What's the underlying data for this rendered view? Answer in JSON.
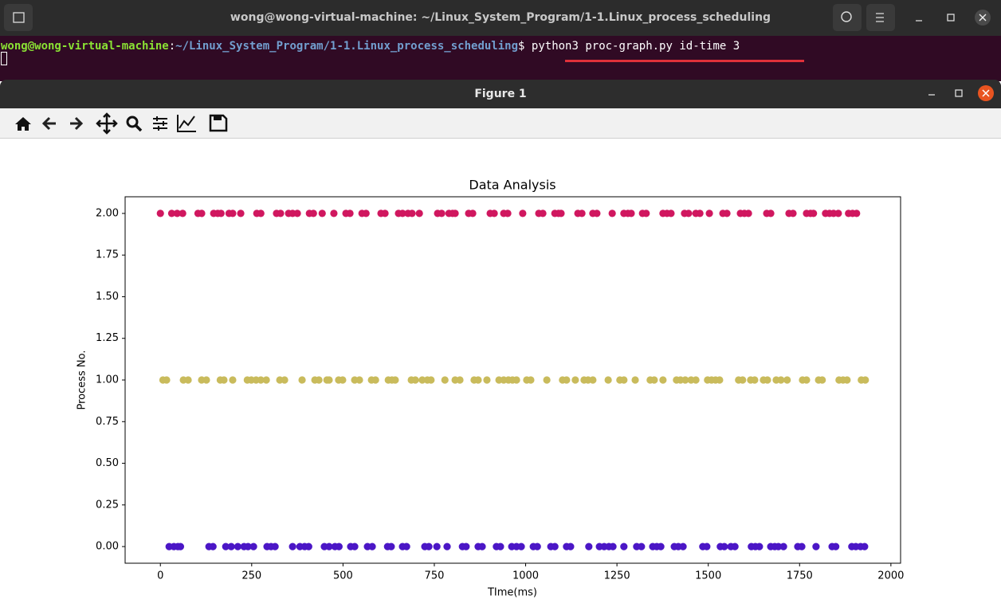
{
  "terminal": {
    "title": "wong@wong-virtual-machine: ~/Linux_System_Program/1-1.Linux_process_scheduling",
    "prompt_user": "wong@wong-virtual-machine",
    "prompt_sep": ":",
    "prompt_path": "~/Linux_System_Program/1-1.Linux_process_scheduling",
    "prompt_symbol": "$",
    "command": "python3 proc-graph.py id-time 3"
  },
  "figure_window": {
    "title": "Figure 1"
  },
  "chart_data": {
    "type": "scatter",
    "title": "Data Analysis",
    "x_label": "TIme(ms)",
    "y_label": "Process No.",
    "xlim": [
      -96.5,
      2026.5
    ],
    "ylim": [
      -0.1,
      2.1
    ],
    "xticks": [
      0,
      250,
      500,
      750,
      1000,
      1250,
      1500,
      1750,
      2000
    ],
    "yticks": [
      {
        "value": 0,
        "label": "0.00"
      },
      {
        "value": 0.25,
        "label": "0.25"
      },
      {
        "value": 0.5,
        "label": "0.50"
      },
      {
        "value": 0.75,
        "label": "0.75"
      },
      {
        "value": 1,
        "label": "1.00"
      },
      {
        "value": 1.25,
        "label": "1.25"
      },
      {
        "value": 1.5,
        "label": "1.50"
      },
      {
        "value": 1.75,
        "label": "1.75"
      },
      {
        "value": 2,
        "label": "2.00"
      }
    ],
    "grid": false,
    "series": [
      {
        "color": "#d0175f",
        "y": 2,
        "x": [
          0,
          31,
          46,
          61,
          103,
          113,
          146,
          157,
          166,
          188,
          198,
          220,
          264,
          275,
          318,
          329,
          351,
          362,
          375,
          408,
          419,
          443,
          475,
          508,
          519,
          552,
          563,
          604,
          615,
          652,
          663,
          678,
          689,
          709,
          759,
          770,
          790,
          800,
          807,
          844,
          855,
          903,
          914,
          940,
          951,
          992,
          1036,
          1047,
          1080,
          1090,
          1097,
          1143,
          1154,
          1184,
          1195,
          1237,
          1269,
          1280,
          1289,
          1320,
          1330,
          1376,
          1387,
          1398,
          1435,
          1446,
          1466,
          1477,
          1503,
          1540,
          1551,
          1588,
          1599,
          1610,
          1660,
          1671,
          1721,
          1732,
          1769,
          1780,
          1788,
          1821,
          1832,
          1843,
          1856,
          1884,
          1895,
          1906
        ]
      },
      {
        "color": "#c9bb5c",
        "y": 1,
        "x": [
          7,
          17,
          63,
          76,
          113,
          126,
          164,
          174,
          198,
          238,
          249,
          262,
          275,
          290,
          327,
          340,
          388,
          423,
          434,
          456,
          462,
          488,
          499,
          532,
          545,
          578,
          589,
          624,
          634,
          643,
          687,
          698,
          717,
          731,
          741,
          779,
          807,
          820,
          859,
          870,
          894,
          927,
          940,
          953,
          964,
          975,
          1003,
          1014,
          1058,
          1101,
          1112,
          1136,
          1160,
          1171,
          1184,
          1226,
          1258,
          1269,
          1300,
          1341,
          1352,
          1376,
          1413,
          1424,
          1437,
          1453,
          1466,
          1498,
          1509,
          1520,
          1531,
          1583,
          1594,
          1616,
          1627,
          1651,
          1662,
          1686,
          1699,
          1716,
          1758,
          1769,
          1802,
          1812,
          1858,
          1869,
          1880,
          1919,
          1930
        ]
      },
      {
        "color": "#4b16c6",
        "y": 0,
        "x": [
          24,
          37,
          48,
          55,
          133,
          144,
          179,
          194,
          212,
          229,
          240,
          255,
          292,
          303,
          314,
          362,
          382,
          395,
          406,
          449,
          462,
          478,
          489,
          521,
          532,
          567,
          580,
          622,
          632,
          663,
          674,
          724,
          735,
          757,
          785,
          827,
          837,
          870,
          881,
          920,
          931,
          962,
          975,
          988,
          1021,
          1032,
          1069,
          1080,
          1112,
          1123,
          1173,
          1202,
          1215,
          1228,
          1239,
          1269,
          1304,
          1317,
          1348,
          1359,
          1370,
          1407,
          1418,
          1431,
          1485,
          1496,
          1533,
          1544,
          1562,
          1573,
          1618,
          1629,
          1640,
          1671,
          1682,
          1692,
          1706,
          1745,
          1756,
          1795,
          1839,
          1849,
          1893,
          1904,
          1917,
          1928
        ]
      }
    ]
  }
}
